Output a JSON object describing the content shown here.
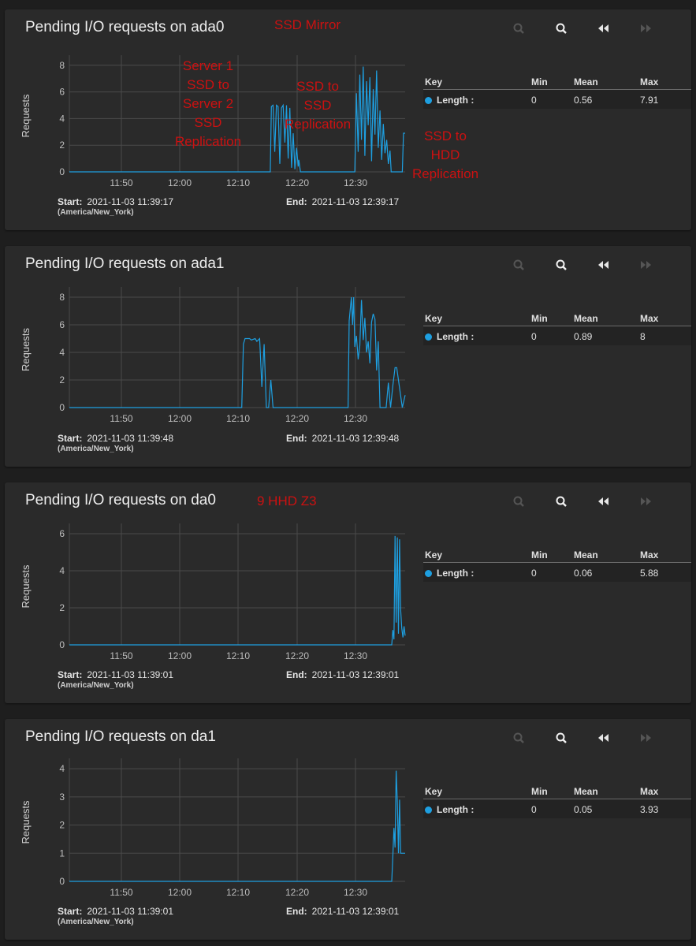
{
  "colors": {
    "series": "#1e9fe0",
    "annotation": "#cc1111",
    "card": "#2a2a2a"
  },
  "toolbar_icons": [
    "zoom-in-icon",
    "zoom-out-icon",
    "step-back-icon",
    "step-forward-icon"
  ],
  "legend_headers": {
    "key": "Key",
    "min": "Min",
    "mean": "Mean",
    "max": "Max"
  },
  "cards": [
    {
      "title": "Pending I/O requests on ada0",
      "annotation_inline": "SSD Mirror",
      "start_label": "Start:",
      "start": "2021-11-03 11:39:17",
      "timezone": "(America/New_York)",
      "end_label": "End:",
      "end": "2021-11-03 12:39:17",
      "legend": {
        "name": "Length :",
        "min": "0",
        "mean": "0.56",
        "max": "7.91"
      },
      "annotations": [
        {
          "text": [
            "Server 1",
            "SSD to",
            "Server 2",
            "SSD",
            "Replication"
          ]
        },
        {
          "text": [
            "SSD to",
            "SSD",
            "Replication"
          ]
        },
        {
          "text": [
            "SSD to",
            "HDD",
            "Replication"
          ]
        }
      ]
    },
    {
      "title": "Pending I/O requests on ada1",
      "annotation_inline": "",
      "start_label": "Start:",
      "start": "2021-11-03 11:39:48",
      "timezone": "(America/New_York)",
      "end_label": "End:",
      "end": "2021-11-03 12:39:48",
      "legend": {
        "name": "Length :",
        "min": "0",
        "mean": "0.89",
        "max": "8"
      },
      "annotations": []
    },
    {
      "title": "Pending I/O requests on da0",
      "annotation_inline": "9 HHD Z3",
      "start_label": "Start:",
      "start": "2021-11-03 11:39:01",
      "timezone": "(America/New_York)",
      "end_label": "End:",
      "end": "2021-11-03 12:39:01",
      "legend": {
        "name": "Length :",
        "min": "0",
        "mean": "0.06",
        "max": "5.88"
      },
      "annotations": []
    },
    {
      "title": "Pending I/O requests on da1",
      "annotation_inline": "",
      "start_label": "Start:",
      "start": "2021-11-03 11:39:01",
      "timezone": "(America/New_York)",
      "end_label": "End:",
      "end": "2021-11-03 12:39:01",
      "legend": {
        "name": "Length :",
        "min": "0",
        "mean": "0.05",
        "max": "3.93"
      },
      "annotations": []
    }
  ],
  "chart_data": [
    {
      "type": "line",
      "ylabel": "Requests",
      "xticks": [
        "11:50",
        "12:00",
        "12:10",
        "12:20",
        "12:30"
      ],
      "yticks": [
        0,
        2,
        4,
        6,
        8
      ],
      "ylim": [
        0,
        8.4
      ],
      "xlim": [
        0,
        60
      ],
      "grid": true,
      "series": [
        {
          "name": "Length",
          "x": [
            0,
            35.9,
            36.1,
            36.4,
            36.7,
            37.0,
            37.3,
            37.6,
            37.9,
            38.2,
            38.5,
            38.8,
            39.1,
            39.4,
            39.7,
            40.0,
            40.3,
            40.6,
            40.9,
            41.0,
            41.3,
            51.0,
            51.3,
            51.6,
            51.9,
            52.2,
            52.5,
            52.8,
            53.1,
            53.4,
            53.7,
            54.0,
            54.3,
            54.6,
            54.9,
            55.2,
            55.5,
            55.8,
            56.1,
            56.4,
            56.7,
            57.0,
            57.3,
            57.5,
            59.5,
            59.7,
            60
          ],
          "values": [
            0,
            0,
            4.9,
            5.0,
            1.5,
            5.0,
            4.9,
            0.6,
            4.8,
            5.0,
            2.2,
            5.0,
            1.0,
            4.8,
            0.3,
            2.9,
            0.2,
            1.8,
            0.4,
            0.9,
            0,
            0,
            5.9,
            1.5,
            7.3,
            2.4,
            7.9,
            1.2,
            6.8,
            3.5,
            7.1,
            0.8,
            6.2,
            2.8,
            7.6,
            1.8,
            4.6,
            0.9,
            3.6,
            1.4,
            2.4,
            0.6,
            1.6,
            0,
            0,
            2.9,
            2.9
          ]
        }
      ]
    },
    {
      "type": "line",
      "ylabel": "Requests",
      "xticks": [
        "11:50",
        "12:00",
        "12:10",
        "12:20",
        "12:30"
      ],
      "yticks": [
        0,
        2,
        4,
        6,
        8
      ],
      "ylim": [
        0,
        8.4
      ],
      "xlim": [
        0,
        60
      ],
      "grid": true,
      "series": [
        {
          "name": "Length",
          "x": [
            0,
            30.8,
            31.1,
            31.4,
            32.2,
            32.5,
            33.2,
            33.5,
            34.0,
            34.4,
            34.8,
            35.2,
            35.6,
            36.0,
            36.4,
            36.7,
            49.8,
            50.0,
            50.4,
            50.6,
            50.8,
            51.0,
            51.3,
            51.6,
            51.9,
            52.2,
            52.5,
            52.8,
            53.1,
            53.4,
            53.7,
            54.0,
            54.3,
            54.6,
            54.9,
            55.2,
            55.5,
            56.0,
            56.6,
            57.0,
            57.4,
            57.8,
            58.2,
            58.5,
            59.5,
            60
          ],
          "values": [
            0,
            0,
            4.6,
            5.0,
            5.0,
            4.9,
            5.0,
            4.8,
            5.0,
            1.5,
            4.6,
            0,
            0,
            2.0,
            0,
            0,
            0,
            6.3,
            8.0,
            6.0,
            8.0,
            4.4,
            5.2,
            3.5,
            4.5,
            7.8,
            4.9,
            6.5,
            4.0,
            4.8,
            3.2,
            6.2,
            6.8,
            6.4,
            2.7,
            4.8,
            0,
            0,
            0,
            1.8,
            0,
            1.6,
            2.9,
            2.9,
            0,
            0.9
          ]
        }
      ]
    },
    {
      "type": "line",
      "ylabel": "Requests",
      "xticks": [
        "11:50",
        "12:00",
        "12:10",
        "12:20",
        "12:30"
      ],
      "yticks": [
        0,
        2,
        4,
        6
      ],
      "ylim": [
        0,
        6.3
      ],
      "xlim": [
        0,
        60
      ],
      "grid": true,
      "series": [
        {
          "name": "Length",
          "x": [
            0,
            57.6,
            57.8,
            58.0,
            58.2,
            58.4,
            58.6,
            58.8,
            59.0,
            59.2,
            59.4,
            59.6,
            59.8,
            60
          ],
          "values": [
            0,
            0,
            0.8,
            0.3,
            5.88,
            1.2,
            5.8,
            0.6,
            5.7,
            1.9,
            0.9,
            0.4,
            1.0,
            0.5
          ]
        }
      ]
    },
    {
      "type": "line",
      "ylabel": "Requests",
      "xticks": [
        "11:50",
        "12:00",
        "12:10",
        "12:20",
        "12:30"
      ],
      "yticks": [
        0,
        1,
        2,
        3,
        4
      ],
      "ylim": [
        0,
        4.2
      ],
      "xlim": [
        0,
        60
      ],
      "grid": true,
      "series": [
        {
          "name": "Length",
          "x": [
            0,
            57.6,
            57.8,
            58.0,
            58.2,
            58.4,
            58.6,
            58.8,
            59.0,
            59.2,
            59.5,
            60
          ],
          "values": [
            0,
            0,
            0.9,
            1.9,
            1.2,
            3.93,
            2.8,
            1.0,
            2.9,
            1.0,
            1.0,
            1.0
          ]
        }
      ]
    }
  ]
}
